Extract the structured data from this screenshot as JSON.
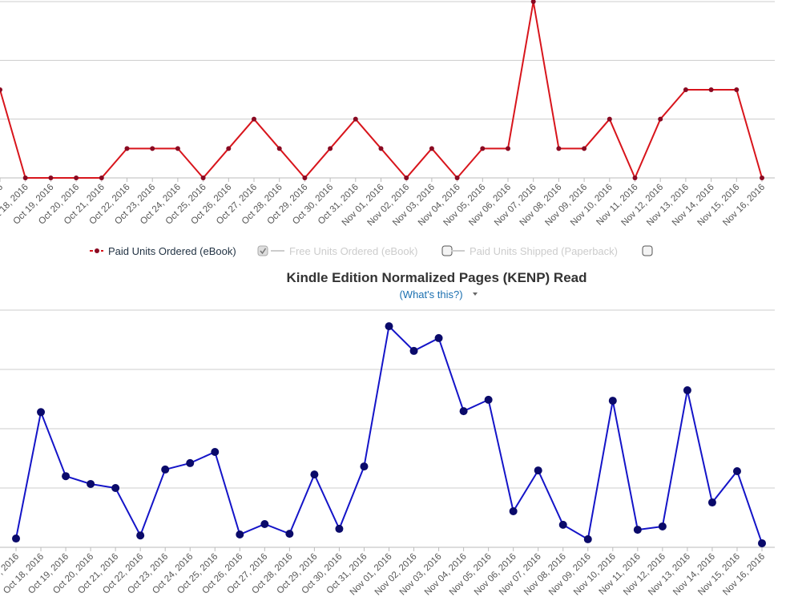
{
  "chart_data": [
    {
      "type": "line",
      "categories": [
        "Oct 17, 2016",
        "Oct 18, 2016",
        "Oct 19, 2016",
        "Oct 20, 2016",
        "Oct 21, 2016",
        "Oct 22, 2016",
        "Oct 23, 2016",
        "Oct 24, 2016",
        "Oct 25, 2016",
        "Oct 26, 2016",
        "Oct 27, 2016",
        "Oct 28, 2016",
        "Oct 29, 2016",
        "Oct 30, 2016",
        "Oct 31, 2016",
        "Nov 01, 2016",
        "Nov 02, 2016",
        "Nov 03, 2016",
        "Nov 04, 2016",
        "Nov 05, 2016",
        "Nov 06, 2016",
        "Nov 07, 2016",
        "Nov 08, 2016",
        "Nov 09, 2016",
        "Nov 10, 2016",
        "Nov 11, 2016",
        "Nov 12, 2016",
        "Nov 13, 2016",
        "Nov 14, 2016",
        "Nov 15, 2016",
        "Nov 16, 2016"
      ],
      "series": [
        {
          "name": "Paid Units Ordered (eBook)",
          "color": "#d8151c",
          "marker_color": "#8a0a22",
          "visible": true,
          "values": [
            3,
            0,
            0,
            0,
            0,
            1,
            1,
            1,
            0,
            1,
            2,
            1,
            0,
            1,
            2,
            1,
            0,
            1,
            0,
            1,
            1,
            6,
            1,
            1,
            2,
            0,
            2,
            3,
            3,
            3,
            0
          ]
        },
        {
          "name": "Free Units Ordered (eBook)",
          "color": "#cccccc",
          "visible": false
        },
        {
          "name": "Paid Units Shipped (Paperback)",
          "color": "#cccccc",
          "visible": false
        }
      ],
      "ylim": [
        0,
        6
      ],
      "yticks": [
        0,
        2,
        4,
        6
      ],
      "grid": true
    },
    {
      "type": "line",
      "title": "Kindle Edition Normalized Pages (KENP) Read",
      "help_link": "(What's this?)",
      "categories": [
        "Oct 17, 2016",
        "Oct 18, 2016",
        "Oct 19, 2016",
        "Oct 20, 2016",
        "Oct 21, 2016",
        "Oct 22, 2016",
        "Oct 23, 2016",
        "Oct 24, 2016",
        "Oct 25, 2016",
        "Oct 26, 2016",
        "Oct 27, 2016",
        "Oct 28, 2016",
        "Oct 29, 2016",
        "Oct 30, 2016",
        "Oct 31, 2016",
        "Nov 01, 2016",
        "Nov 02, 2016",
        "Nov 03, 2016",
        "Nov 04, 2016",
        "Nov 05, 2016",
        "Nov 06, 2016",
        "Nov 07, 2016",
        "Nov 08, 2016",
        "Nov 09, 2016",
        "Nov 10, 2016",
        "Nov 11, 2016",
        "Nov 12, 2016",
        "Nov 13, 2016",
        "Nov 14, 2016",
        "Nov 15, 2016",
        "Nov 16, 2016"
      ],
      "series": [
        {
          "name": "KENP Read",
          "color": "#1414c8",
          "marker_color": "#0a0a6a",
          "visible": true,
          "values": [
            3.7,
            57,
            30,
            26.7,
            25,
            5,
            32.8,
            35.5,
            40.2,
            5.4,
            9.8,
            5.7,
            30.7,
            7.8,
            34.1,
            93.2,
            82.8,
            88.2,
            57.4,
            62.2,
            15.2,
            32.4,
            9.5,
            3.4,
            61.8,
            7.4,
            8.8,
            66.2,
            18.9,
            32.1,
            1.7
          ]
        }
      ],
      "ylim": [
        0,
        100
      ],
      "yticks": [
        0,
        25,
        50,
        75,
        100
      ],
      "grid": true
    }
  ]
}
